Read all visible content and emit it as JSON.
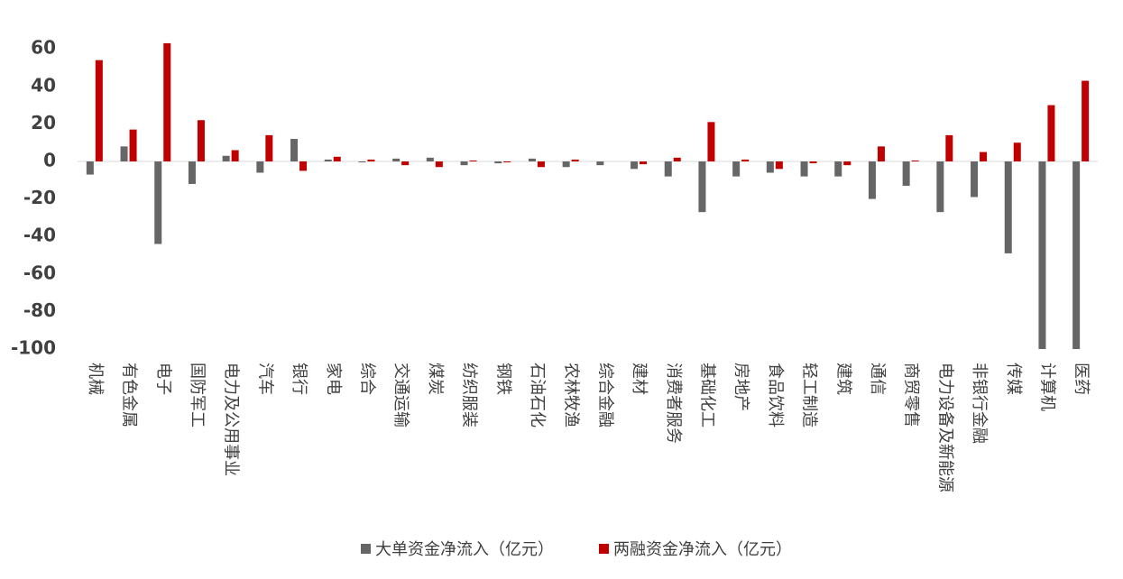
{
  "chart_data": {
    "type": "bar",
    "categories": [
      "机械",
      "有色金属",
      "电子",
      "国防军工",
      "电力及公用事业",
      "汽车",
      "银行",
      "家电",
      "综合",
      "交通运输",
      "煤炭",
      "纺织服装",
      "钢铁",
      "石油石化",
      "农林牧渔",
      "综合金融",
      "建材",
      "消费者服务",
      "基础化工",
      "房地产",
      "食品饮料",
      "轻工制造",
      "建筑",
      "通信",
      "商贸零售",
      "电力设备及新能源",
      "非银行金融",
      "传媒",
      "计算机",
      "医药"
    ],
    "series": [
      {
        "name": "大单资金净流入（亿元）",
        "color": "#666666",
        "values": [
          -7,
          8,
          -44,
          -12,
          3,
          -6,
          12,
          1,
          -0.5,
          1.5,
          2,
          -2,
          -1,
          1.5,
          -3,
          -2,
          -4,
          -8,
          -27,
          -8,
          -6,
          -8,
          -8,
          -20,
          -13,
          -27,
          -19,
          -49,
          -100,
          -100
        ]
      },
      {
        "name": "两融资金净流入（亿元）",
        "color": "#c00000",
        "values": [
          54,
          17,
          63,
          22,
          6,
          14,
          -5,
          2.5,
          1,
          -2,
          -3,
          0.5,
          -0.5,
          -3,
          1,
          0,
          -1.5,
          2,
          21,
          1,
          -4,
          -1,
          -2,
          8,
          0.5,
          14,
          5,
          10,
          30,
          43
        ]
      }
    ],
    "ylim": [
      -100,
      70
    ],
    "yticks": [
      -100,
      -80,
      -60,
      -40,
      -20,
      0,
      20,
      40,
      60
    ],
    "legend": "bottom"
  }
}
